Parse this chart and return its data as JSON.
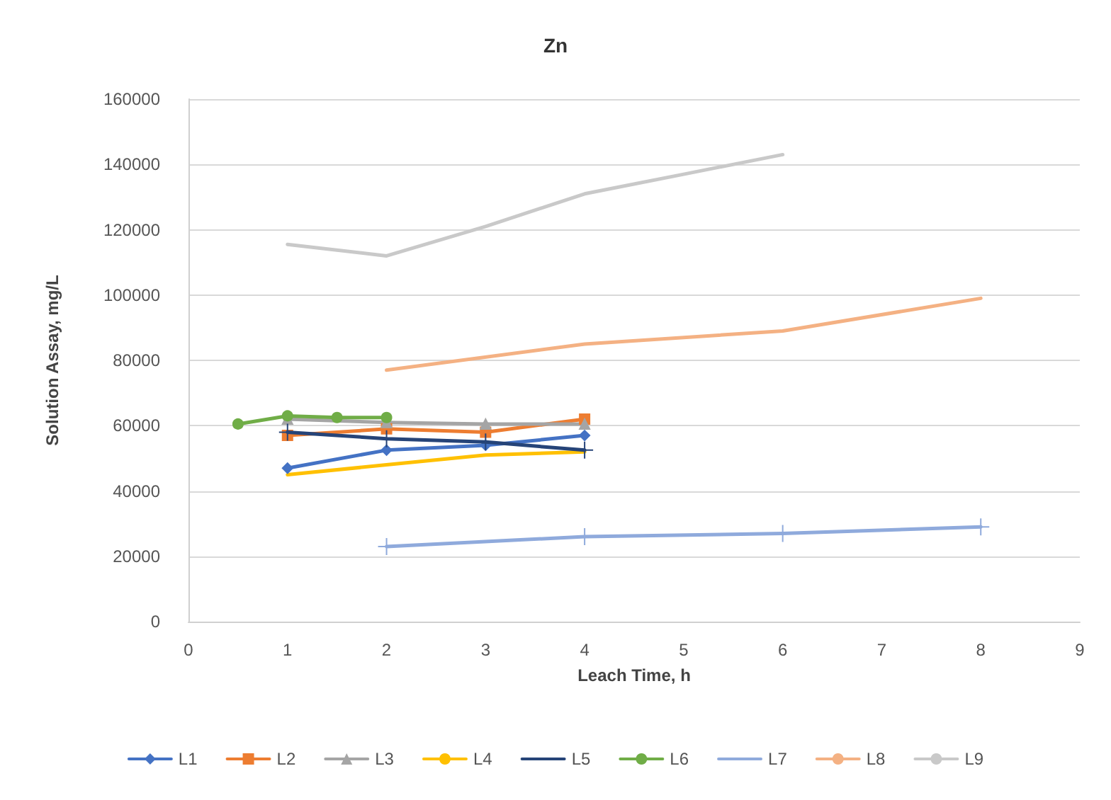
{
  "chart_data": {
    "type": "line",
    "title": "Zn",
    "xlabel": "Leach Time, h",
    "ylabel": "Solution Assay, mg/L",
    "xlim": [
      0,
      9
    ],
    "xticks": [
      0,
      1,
      2,
      3,
      4,
      5,
      6,
      7,
      8,
      9
    ],
    "ylim": [
      0,
      160000
    ],
    "yticks": [
      0,
      20000,
      40000,
      60000,
      80000,
      100000,
      120000,
      140000,
      160000
    ],
    "grid": "y",
    "legend": "bottom",
    "series": [
      {
        "name": "L1",
        "color": "#4472c4",
        "marker": "diamond",
        "x": [
          1,
          2,
          3,
          4
        ],
        "values": [
          47000,
          52500,
          54000,
          57000
        ]
      },
      {
        "name": "L2",
        "color": "#ed7d31",
        "marker": "square",
        "x": [
          1,
          2,
          3,
          4
        ],
        "values": [
          57000,
          59000,
          58000,
          62000
        ]
      },
      {
        "name": "L3",
        "color": "#a5a5a5",
        "marker": "triangle",
        "x": [
          1,
          2,
          3,
          4
        ],
        "values": [
          62000,
          61000,
          60500,
          60500
        ]
      },
      {
        "name": "L4",
        "color": "#ffc000",
        "marker": "none",
        "x": [
          1,
          2,
          3,
          4
        ],
        "values": [
          45000,
          48000,
          51000,
          52000
        ]
      },
      {
        "name": "L5",
        "color": "#264478",
        "marker": "cross",
        "x": [
          1,
          2,
          3,
          4
        ],
        "values": [
          58000,
          56000,
          55000,
          52500
        ]
      },
      {
        "name": "L6",
        "color": "#70ad47",
        "marker": "circle",
        "x": [
          0.5,
          1,
          1.5,
          2
        ],
        "values": [
          60500,
          63000,
          62500,
          62500
        ]
      },
      {
        "name": "L7",
        "color": "#8faadc",
        "marker": "cross",
        "x": [
          2,
          4,
          6,
          8
        ],
        "values": [
          23000,
          26000,
          27000,
          29000
        ]
      },
      {
        "name": "L8",
        "color": "#f4b183",
        "marker": "none",
        "x": [
          2,
          4,
          6,
          8
        ],
        "values": [
          77000,
          85000,
          89000,
          99000
        ]
      },
      {
        "name": "L9",
        "color": "#c9c9c9",
        "marker": "none",
        "x": [
          1,
          2,
          3,
          4,
          5,
          6
        ],
        "values": [
          115500,
          112000,
          121000,
          131000,
          137000,
          143000
        ]
      }
    ]
  }
}
